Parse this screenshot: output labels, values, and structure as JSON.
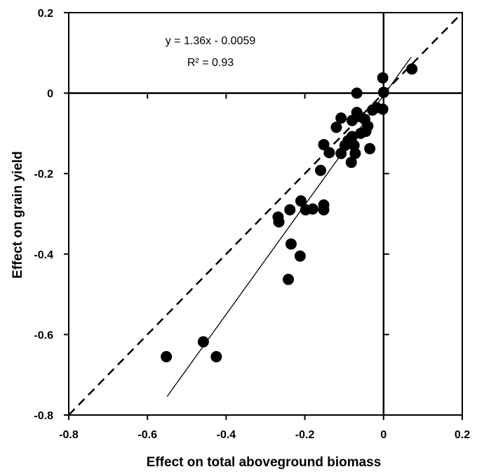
{
  "chart_data": {
    "type": "scatter",
    "title": "",
    "xlabel": "Effect on total aboveground biomass",
    "ylabel": "Effect on grain yield",
    "xlim": [
      -0.8,
      0.2
    ],
    "ylim": [
      -0.8,
      0.2
    ],
    "x_ticks": [
      -0.8,
      -0.6,
      -0.4,
      -0.2,
      0,
      0.2
    ],
    "y_ticks": [
      -0.8,
      -0.6,
      -0.4,
      -0.2,
      0,
      0.2
    ],
    "x_tick_labels": [
      "-0.8",
      "-0.6",
      "-0.4",
      "-0.2",
      "0",
      "0.2"
    ],
    "y_tick_labels": [
      "-0.8",
      "-0.6",
      "-0.4",
      "-0.2",
      "0",
      "0.2"
    ],
    "grid": false,
    "points": [
      {
        "x": 0.072,
        "y": 0.06
      },
      {
        "x": -0.002,
        "y": 0.038
      },
      {
        "x": 0.0,
        "y": 0.002
      },
      {
        "x": -0.068,
        "y": 0.0
      },
      {
        "x": -0.002,
        "y": -0.04
      },
      {
        "x": -0.018,
        "y": -0.036
      },
      {
        "x": -0.028,
        "y": -0.042
      },
      {
        "x": -0.068,
        "y": -0.048
      },
      {
        "x": -0.062,
        "y": -0.058
      },
      {
        "x": -0.048,
        "y": -0.065
      },
      {
        "x": -0.08,
        "y": -0.068
      },
      {
        "x": -0.108,
        "y": -0.062
      },
      {
        "x": -0.04,
        "y": -0.082
      },
      {
        "x": -0.12,
        "y": -0.085
      },
      {
        "x": -0.045,
        "y": -0.095
      },
      {
        "x": -0.058,
        "y": -0.1
      },
      {
        "x": -0.08,
        "y": -0.108
      },
      {
        "x": -0.09,
        "y": -0.118
      },
      {
        "x": -0.098,
        "y": -0.13
      },
      {
        "x": -0.152,
        "y": -0.128
      },
      {
        "x": -0.075,
        "y": -0.13
      },
      {
        "x": -0.035,
        "y": -0.138
      },
      {
        "x": -0.138,
        "y": -0.148
      },
      {
        "x": -0.108,
        "y": -0.15
      },
      {
        "x": -0.072,
        "y": -0.15
      },
      {
        "x": -0.082,
        "y": -0.172
      },
      {
        "x": -0.16,
        "y": -0.192
      },
      {
        "x": -0.21,
        "y": -0.268
      },
      {
        "x": -0.152,
        "y": -0.278
      },
      {
        "x": -0.238,
        "y": -0.29
      },
      {
        "x": -0.198,
        "y": -0.29
      },
      {
        "x": -0.18,
        "y": -0.288
      },
      {
        "x": -0.152,
        "y": -0.29
      },
      {
        "x": -0.268,
        "y": -0.308
      },
      {
        "x": -0.266,
        "y": -0.32
      },
      {
        "x": -0.235,
        "y": -0.375
      },
      {
        "x": -0.212,
        "y": -0.405
      },
      {
        "x": -0.242,
        "y": -0.463
      },
      {
        "x": -0.458,
        "y": -0.618
      },
      {
        "x": -0.552,
        "y": -0.655
      },
      {
        "x": -0.425,
        "y": -0.655
      }
    ],
    "regression": {
      "equation": "y = 1.36x - 0.0059",
      "r_squared": "R² = 0.93",
      "slope": 1.36,
      "intercept": -0.0059,
      "x_range": [
        -0.55,
        0.07
      ]
    },
    "reference_line": {
      "style": "dashed",
      "slope": 1,
      "intercept": 0
    }
  }
}
